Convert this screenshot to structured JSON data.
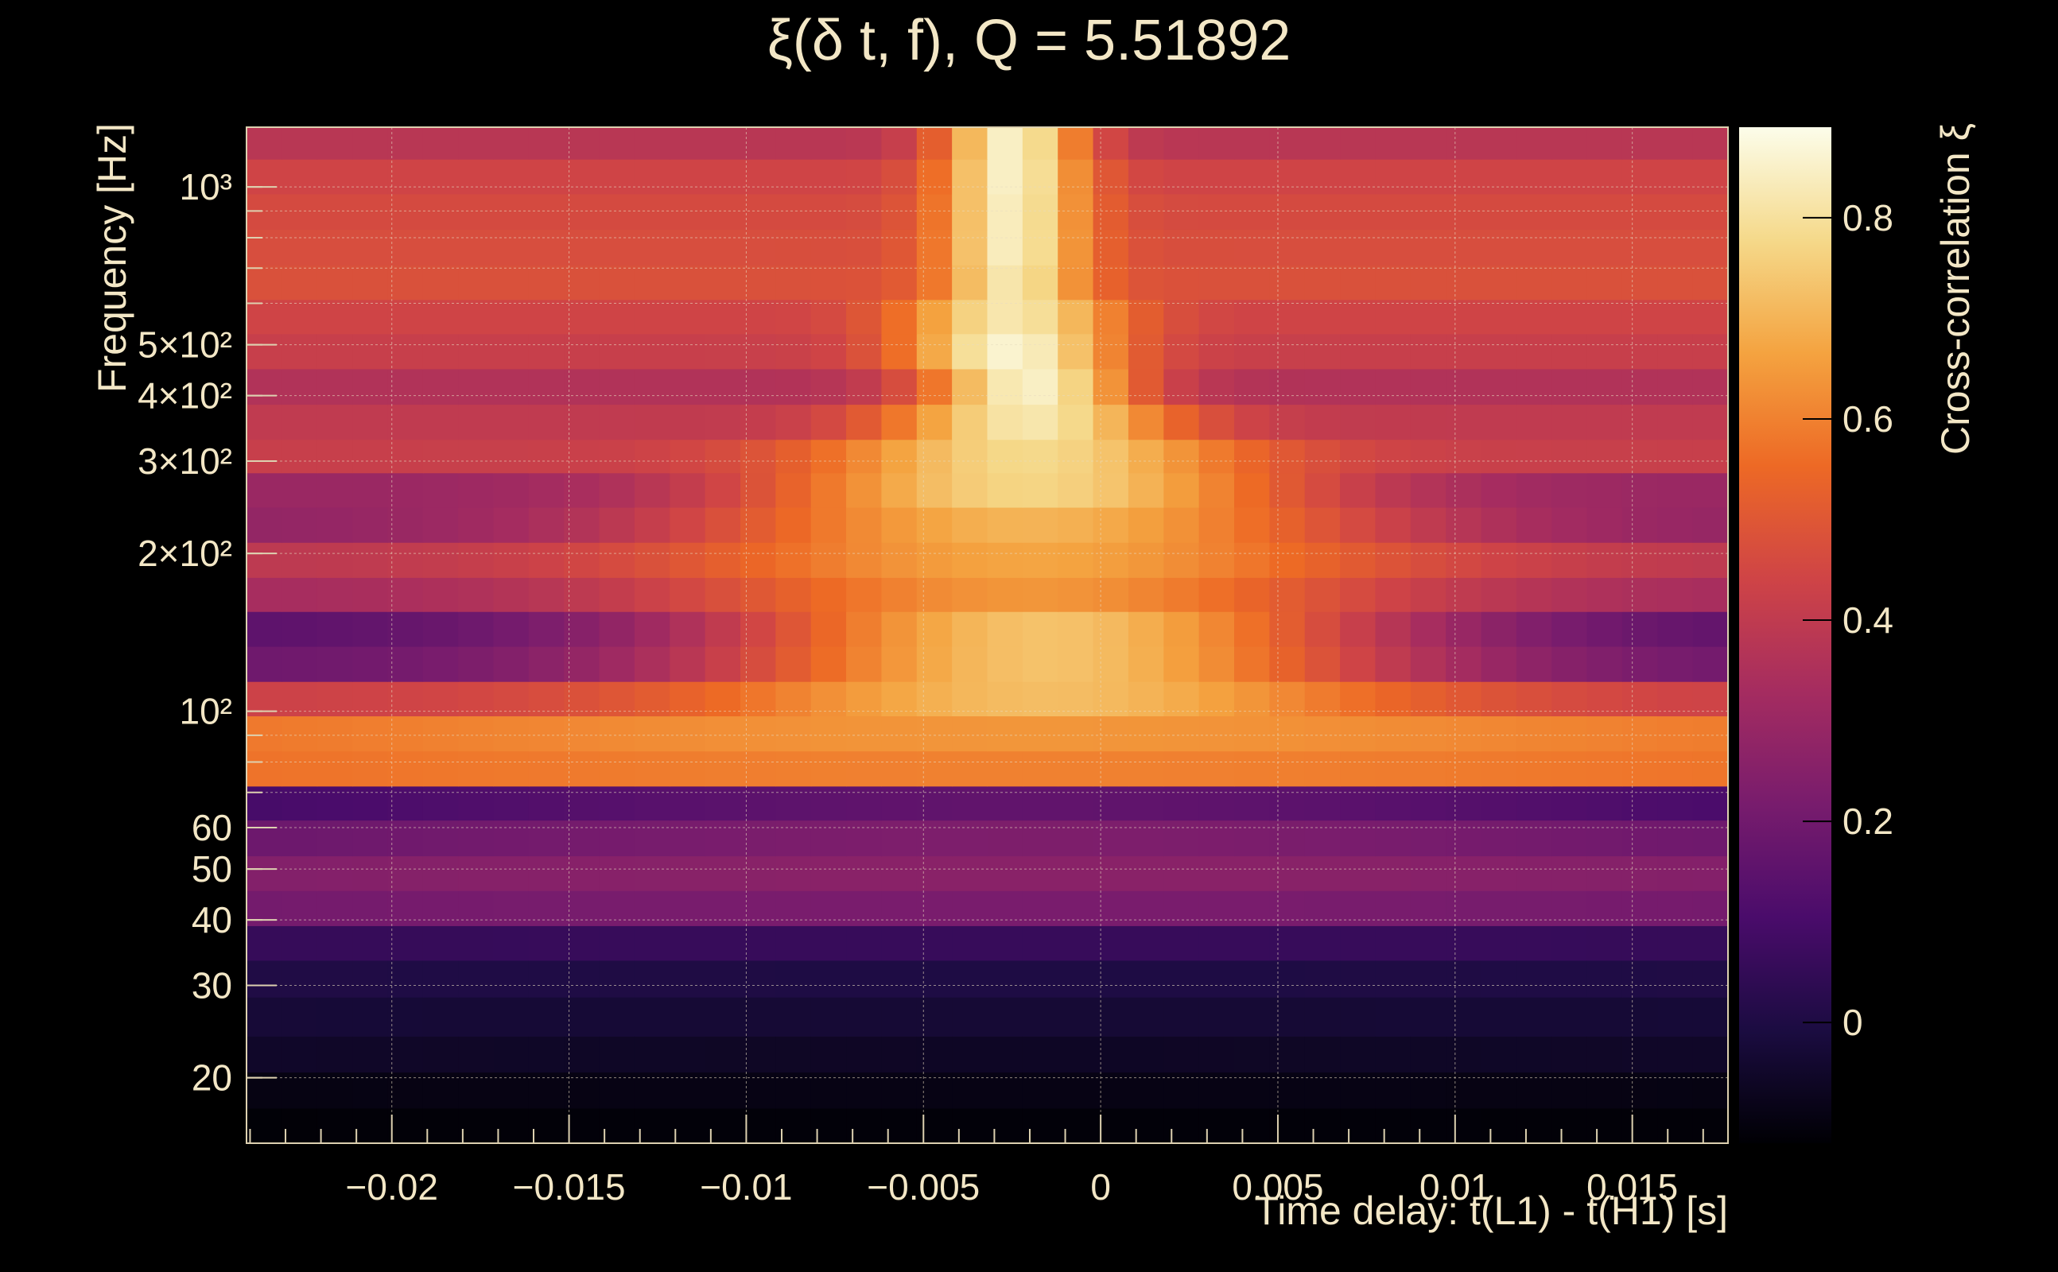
{
  "chart_data": {
    "type": "heatmap",
    "title": "ξ(δ t, f), Q = 5.51892",
    "xlabel": "Time delay: t(L1) - t(H1) [s]",
    "ylabel": "Frequency [Hz]",
    "zlabel": "Cross-correlation ξ",
    "xlim": [
      -0.0241,
      0.0177
    ],
    "ylim": [
      15,
      1300
    ],
    "y_scale": "log",
    "zlim": [
      -0.12,
      0.89
    ],
    "grid": true,
    "x_ticks": [
      {
        "value": -0.02,
        "label": "−0.02"
      },
      {
        "value": -0.015,
        "label": "−0.015"
      },
      {
        "value": -0.01,
        "label": "−0.01"
      },
      {
        "value": -0.005,
        "label": "−0.005"
      },
      {
        "value": 0,
        "label": "0"
      },
      {
        "value": 0.005,
        "label": "0.005"
      },
      {
        "value": 0.01,
        "label": "0.01"
      },
      {
        "value": 0.015,
        "label": "0.015"
      }
    ],
    "y_ticks": [
      {
        "value": 20,
        "label": "20"
      },
      {
        "value": 30,
        "label": "30"
      },
      {
        "value": 40,
        "label": "40"
      },
      {
        "value": 50,
        "label": "50"
      },
      {
        "value": 60,
        "label": "60"
      },
      {
        "value": 100,
        "label": "10²"
      },
      {
        "value": 200,
        "label": "2×10²"
      },
      {
        "value": 300,
        "label": "3×10²"
      },
      {
        "value": 400,
        "label": "4×10²"
      },
      {
        "value": 500,
        "label": "5×10²"
      },
      {
        "value": 1000,
        "label": "10³"
      }
    ],
    "colorbar_ticks": [
      {
        "value": 0,
        "label": "0"
      },
      {
        "value": 0.2,
        "label": "0.2"
      },
      {
        "value": 0.4,
        "label": "0.4"
      },
      {
        "value": 0.6,
        "label": "0.6"
      },
      {
        "value": 0.8,
        "label": "0.8"
      }
    ],
    "colormap": [
      "#000004",
      "#1b0c41",
      "#4a0c6b",
      "#781c6d",
      "#a52c60",
      "#cf4446",
      "#ed6925",
      "#f4a340",
      "#f5d98a",
      "#fcfdea"
    ],
    "time_bins": 42,
    "frequency_bands": [
      {
        "f_low": 15,
        "f_high": 17.5,
        "peak": -0.11,
        "peak_delay": -0.002,
        "width_s": 0.03,
        "floor": -0.12
      },
      {
        "f_low": 17.5,
        "f_high": 20.5,
        "peak": -0.09,
        "peak_delay": -0.002,
        "width_s": 0.03,
        "floor": -0.1
      },
      {
        "f_low": 20.5,
        "f_high": 24,
        "peak": -0.06,
        "peak_delay": -0.002,
        "width_s": 0.03,
        "floor": -0.04
      },
      {
        "f_low": 24,
        "f_high": 28.5,
        "peak": -0.03,
        "peak_delay": -0.002,
        "width_s": 0.03,
        "floor": -0.02
      },
      {
        "f_low": 28.5,
        "f_high": 33.5,
        "peak": 0.0,
        "peak_delay": -0.002,
        "width_s": 0.03,
        "floor": 0.01
      },
      {
        "f_low": 33.5,
        "f_high": 39,
        "peak": 0.06,
        "peak_delay": -0.002,
        "width_s": 0.03,
        "floor": 0.05
      },
      {
        "f_low": 39,
        "f_high": 45.5,
        "peak": 0.22,
        "peak_delay": -0.002,
        "width_s": 0.03,
        "floor": 0.19
      },
      {
        "f_low": 45.5,
        "f_high": 53,
        "peak": 0.26,
        "peak_delay": -0.002,
        "width_s": 0.03,
        "floor": 0.22
      },
      {
        "f_low": 53,
        "f_high": 62,
        "peak": 0.23,
        "peak_delay": -0.002,
        "width_s": 0.02,
        "floor": 0.17
      },
      {
        "f_low": 62,
        "f_high": 72,
        "peak": 0.16,
        "peak_delay": -0.002,
        "width_s": 0.02,
        "floor": 0.07
      },
      {
        "f_low": 72,
        "f_high": 84,
        "peak": 0.6,
        "peak_delay": -0.002,
        "width_s": 0.02,
        "floor": 0.56
      },
      {
        "f_low": 84,
        "f_high": 98,
        "peak": 0.64,
        "peak_delay": -0.002,
        "width_s": 0.02,
        "floor": 0.56
      },
      {
        "f_low": 98,
        "f_high": 114,
        "peak": 0.72,
        "peak_delay": -0.0015,
        "width_s": 0.01,
        "floor": 0.43
      },
      {
        "f_low": 114,
        "f_high": 133,
        "peak": 0.73,
        "peak_delay": -0.0015,
        "width_s": 0.01,
        "floor": 0.19
      },
      {
        "f_low": 133,
        "f_high": 155,
        "peak": 0.73,
        "peak_delay": -0.0015,
        "width_s": 0.01,
        "floor": 0.15
      },
      {
        "f_low": 155,
        "f_high": 180,
        "peak": 0.64,
        "peak_delay": -0.002,
        "width_s": 0.01,
        "floor": 0.33
      },
      {
        "f_low": 180,
        "f_high": 210,
        "peak": 0.67,
        "peak_delay": -0.002,
        "width_s": 0.01,
        "floor": 0.39
      },
      {
        "f_low": 210,
        "f_high": 245,
        "peak": 0.7,
        "peak_delay": -0.002,
        "width_s": 0.01,
        "floor": 0.28
      },
      {
        "f_low": 245,
        "f_high": 285,
        "peak": 0.77,
        "peak_delay": -0.002,
        "width_s": 0.008,
        "floor": 0.3
      },
      {
        "f_low": 285,
        "f_high": 330,
        "peak": 0.78,
        "peak_delay": -0.002,
        "width_s": 0.006,
        "floor": 0.42
      },
      {
        "f_low": 330,
        "f_high": 385,
        "peak": 0.82,
        "peak_delay": -0.002,
        "width_s": 0.004,
        "floor": 0.4
      },
      {
        "f_low": 385,
        "f_high": 450,
        "peak": 0.85,
        "peak_delay": -0.002,
        "width_s": 0.003,
        "floor": 0.36
      },
      {
        "f_low": 450,
        "f_high": 525,
        "peak": 0.86,
        "peak_delay": -0.0025,
        "width_s": 0.003,
        "floor": 0.42
      },
      {
        "f_low": 525,
        "f_high": 610,
        "peak": 0.82,
        "peak_delay": -0.0025,
        "width_s": 0.003,
        "floor": 0.44
      },
      {
        "f_low": 610,
        "f_high": 710,
        "peak": 0.82,
        "peak_delay": -0.0025,
        "width_s": 0.002,
        "floor": 0.48
      },
      {
        "f_low": 710,
        "f_high": 830,
        "peak": 0.84,
        "peak_delay": -0.0025,
        "width_s": 0.002,
        "floor": 0.47
      },
      {
        "f_low": 830,
        "f_high": 970,
        "peak": 0.84,
        "peak_delay": -0.0025,
        "width_s": 0.002,
        "floor": 0.46
      },
      {
        "f_low": 970,
        "f_high": 1130,
        "peak": 0.85,
        "peak_delay": -0.0025,
        "width_s": 0.002,
        "floor": 0.44
      },
      {
        "f_low": 1130,
        "f_high": 1300,
        "peak": 0.85,
        "peak_delay": -0.0025,
        "width_s": 0.002,
        "floor": 0.38
      }
    ]
  }
}
